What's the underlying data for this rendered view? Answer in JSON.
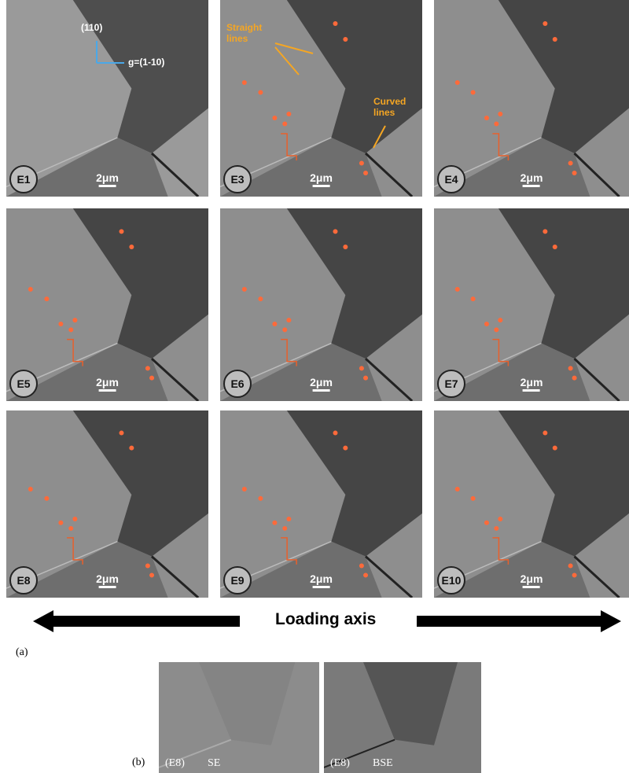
{
  "figure": {
    "panels": [
      {
        "label": "E1",
        "scale": "2μm"
      },
      {
        "label": "E3",
        "scale": "2μm"
      },
      {
        "label": "E4",
        "scale": "2μm"
      },
      {
        "label": "E5",
        "scale": "2μm"
      },
      {
        "label": "E6",
        "scale": "2μm"
      },
      {
        "label": "E7",
        "scale": "2μm"
      },
      {
        "label": "E8",
        "scale": "2μm"
      },
      {
        "label": "E9",
        "scale": "2μm"
      },
      {
        "label": "E10",
        "scale": "2μm"
      }
    ],
    "e1_annotations": {
      "direction": "(110)",
      "g_vector": "g=(1-10)"
    },
    "e3_annotations": {
      "straight": "Straight lines",
      "curved": "Curved lines"
    },
    "axis_label": "Loading axis",
    "part_a": "(a)",
    "part_b": "(b)",
    "sub_panels": [
      {
        "frame": "(E8)",
        "mode": "SE"
      },
      {
        "frame": "(E8)",
        "mode": "BSE"
      }
    ]
  }
}
